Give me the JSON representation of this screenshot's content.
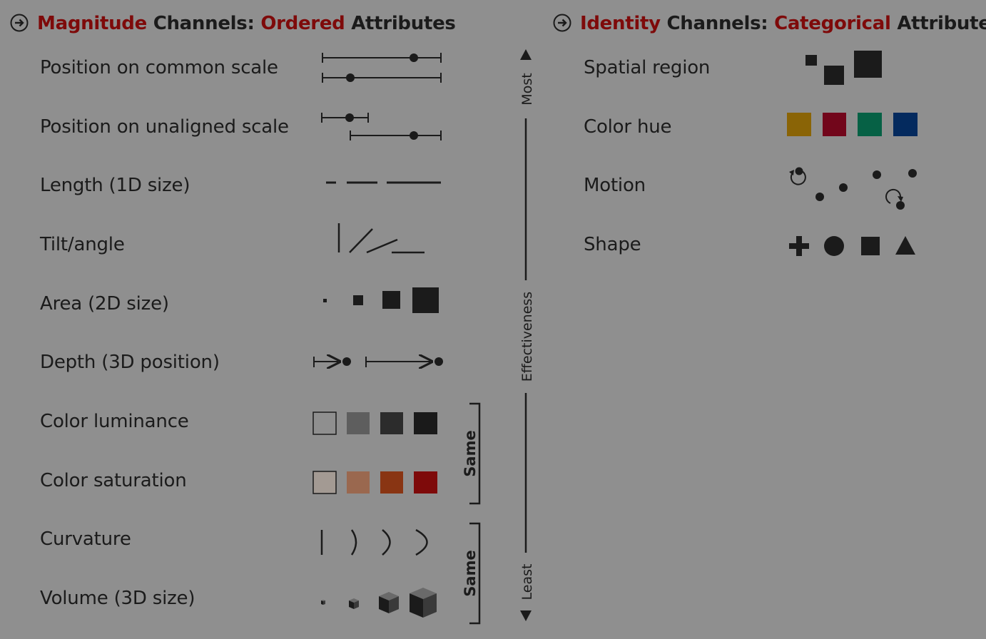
{
  "left_header": {
    "word1": "Magnitude",
    "word2": " Channels: ",
    "word3": "Ordered",
    "word4": " Attributes"
  },
  "right_header": {
    "word1": "Identity",
    "word2": " Channels: ",
    "word3": "Categorical",
    "word4": " Attributes"
  },
  "magnitude_channels": [
    {
      "label": "Position on common scale"
    },
    {
      "label": "Position on unaligned scale"
    },
    {
      "label": "Length (1D size)"
    },
    {
      "label": "Tilt/angle"
    },
    {
      "label": "Area (2D size)"
    },
    {
      "label": "Depth (3D position)"
    },
    {
      "label": "Color luminance"
    },
    {
      "label": "Color saturation"
    },
    {
      "label": "Curvature"
    },
    {
      "label": "Volume (3D size)"
    }
  ],
  "identity_channels": [
    {
      "label": "Spatial region"
    },
    {
      "label": "Color hue"
    },
    {
      "label": "Motion"
    },
    {
      "label": "Shape"
    }
  ],
  "effectiveness_axis": {
    "top_label": "Most",
    "middle_label": "Effectiveness",
    "bottom_label": "Least"
  },
  "brackets": [
    {
      "label": "Same"
    },
    {
      "label": "Same"
    }
  ],
  "colors": {
    "background": "#8f8f8f",
    "accent": "#7e0a0a",
    "mark": "#1b1b1b",
    "luminance": [
      "#8f8f8f",
      "#5e5e5e",
      "#2c2c2c",
      "#1a1a1a"
    ],
    "saturation": [
      "#a39a93",
      "#9a684f",
      "#893513",
      "#7e0a0a"
    ],
    "hue": [
      "#8a6406",
      "#72061b",
      "#066145",
      "#042a5e"
    ]
  }
}
